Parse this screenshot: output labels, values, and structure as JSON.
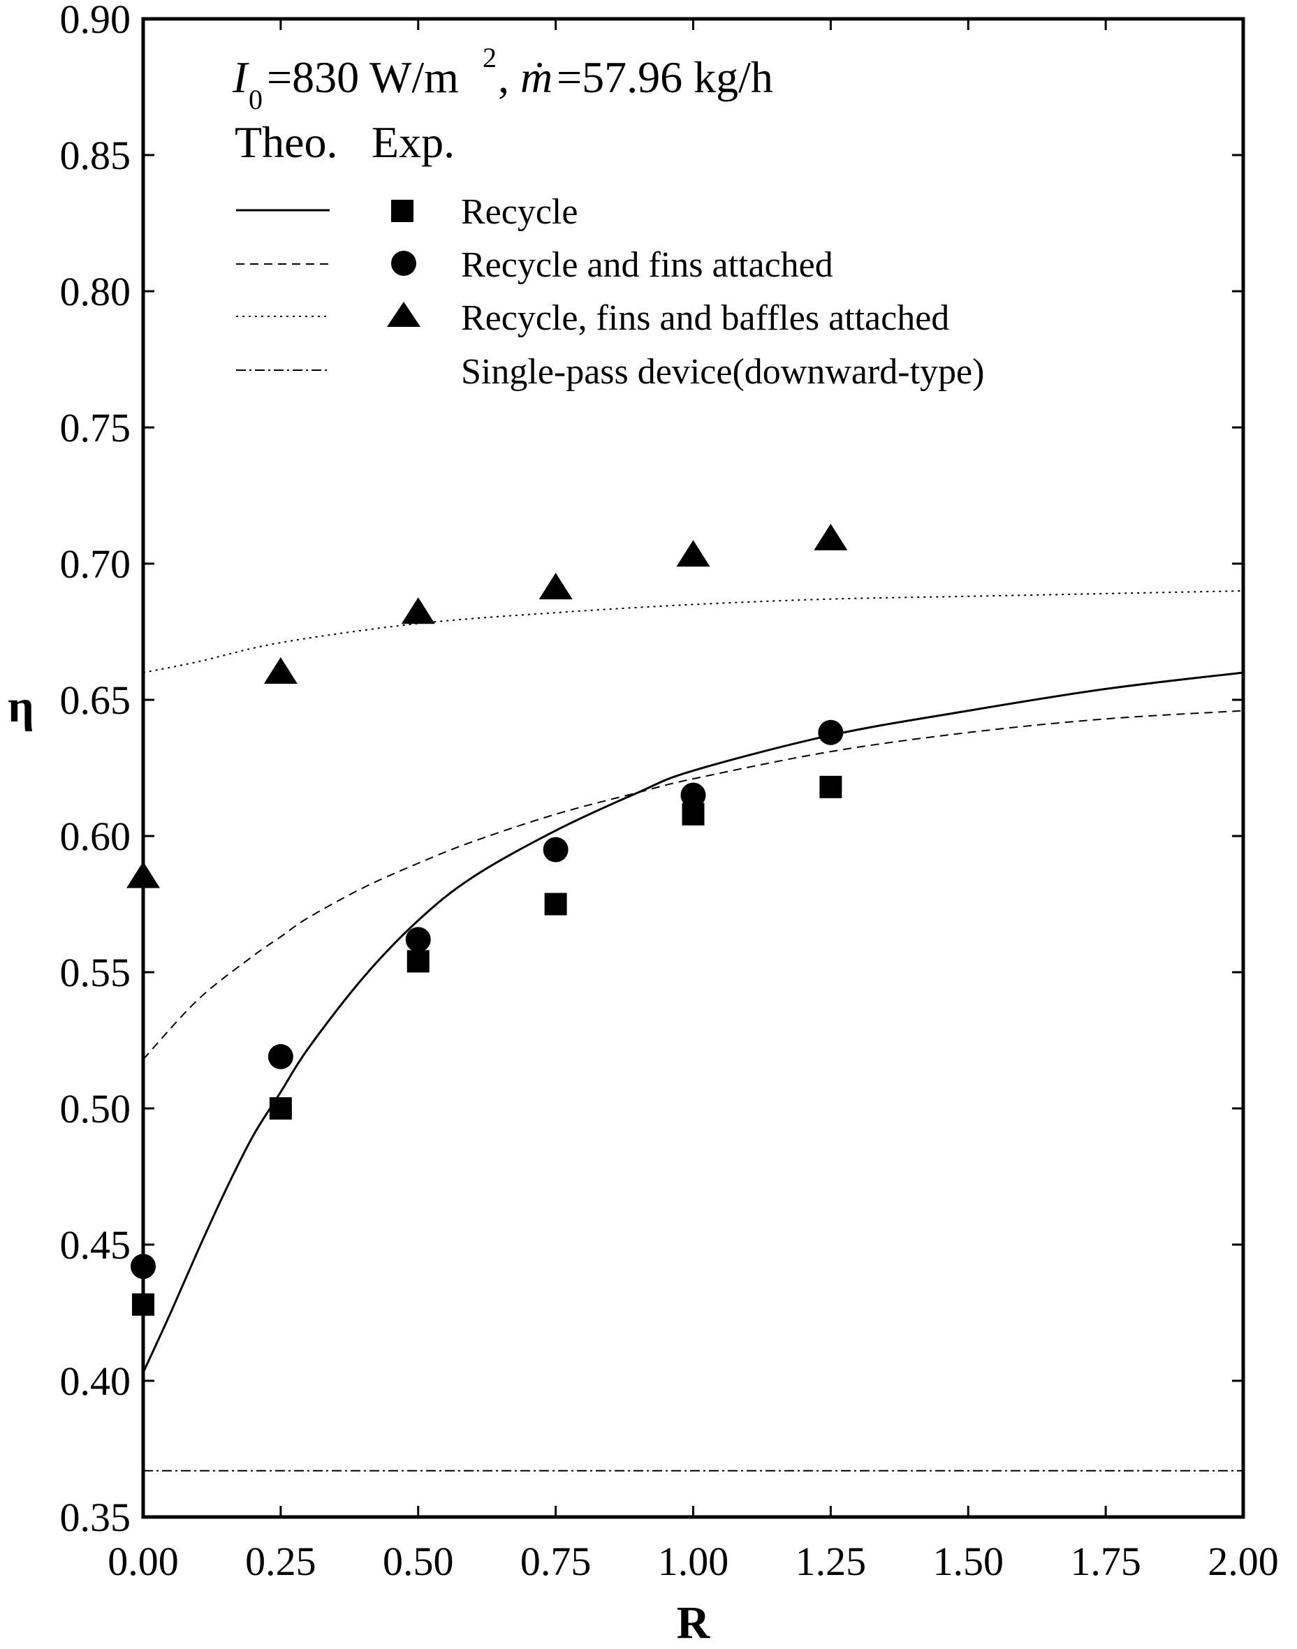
{
  "chart_data": {
    "type": "line",
    "annotation": {
      "i_symbol": "I",
      "i_subscript": "0",
      "i_value": "=830 W/m",
      "i_superscript": "2",
      "separator": ", ",
      "m_symbol": "ṁ",
      "m_value": "=57.96 kg/h"
    },
    "legend_header": {
      "theo": "Theo.",
      "exp": "Exp."
    },
    "xlabel": "R",
    "ylabel": "η",
    "xlim": [
      0,
      2
    ],
    "ylim": [
      0.35,
      0.9
    ],
    "x_ticks": [
      "0.00",
      "0.25",
      "0.50",
      "0.75",
      "1.00",
      "1.25",
      "1.50",
      "1.75",
      "2.00"
    ],
    "y_ticks": [
      "0.35",
      "0.40",
      "0.45",
      "0.50",
      "0.55",
      "0.60",
      "0.65",
      "0.70",
      "0.75",
      "0.80",
      "0.85",
      "0.90"
    ],
    "series": [
      {
        "name": "Recycle",
        "line_style": "solid",
        "marker": "square",
        "theory": {
          "x": [
            0,
            0.05,
            0.1,
            0.15,
            0.2,
            0.25,
            0.3,
            0.4,
            0.5,
            0.6,
            0.75,
            0.9,
            1.0,
            1.25,
            1.5,
            1.75,
            2.0
          ],
          "y": [
            0.403,
            0.425,
            0.448,
            0.47,
            0.49,
            0.506,
            0.522,
            0.548,
            0.569,
            0.585,
            0.602,
            0.616,
            0.624,
            0.637,
            0.646,
            0.654,
            0.66
          ]
        },
        "experiment": {
          "x": [
            0,
            0.25,
            0.5,
            0.75,
            1.0,
            1.25
          ],
          "y": [
            0.428,
            0.5,
            0.554,
            0.575,
            0.608,
            0.618
          ]
        }
      },
      {
        "name": "Recycle and fins attached",
        "line_style": "dashed",
        "marker": "circle",
        "theory": {
          "x": [
            0,
            0.1,
            0.2,
            0.25,
            0.3,
            0.4,
            0.5,
            0.6,
            0.75,
            0.9,
            1.0,
            1.25,
            1.5,
            1.75,
            2.0
          ],
          "y": [
            0.518,
            0.54,
            0.556,
            0.563,
            0.57,
            0.581,
            0.59,
            0.598,
            0.608,
            0.616,
            0.621,
            0.631,
            0.638,
            0.643,
            0.646
          ]
        },
        "experiment": {
          "x": [
            0,
            0.25,
            0.5,
            0.75,
            1.0,
            1.25
          ],
          "y": [
            0.442,
            0.519,
            0.562,
            0.595,
            0.615,
            0.638
          ]
        }
      },
      {
        "name": "Recycle, fins and baffles attached",
        "line_style": "dotted",
        "marker": "triangle",
        "theory": {
          "x": [
            0,
            0.1,
            0.25,
            0.5,
            0.75,
            1.0,
            1.25,
            1.5,
            1.75,
            2.0
          ],
          "y": [
            0.66,
            0.664,
            0.671,
            0.678,
            0.682,
            0.685,
            0.687,
            0.688,
            0.689,
            0.69
          ]
        },
        "experiment": {
          "x": [
            0,
            0.25,
            0.5,
            0.75,
            1.0,
            1.25
          ],
          "y": [
            0.585,
            0.66,
            0.682,
            0.691,
            0.703,
            0.709
          ]
        }
      },
      {
        "name": "Single-pass device(downward-type)",
        "line_style": "dashdot",
        "marker": "none",
        "theory": {
          "x": [
            0,
            2.0
          ],
          "y": [
            0.367,
            0.367
          ]
        }
      }
    ]
  }
}
